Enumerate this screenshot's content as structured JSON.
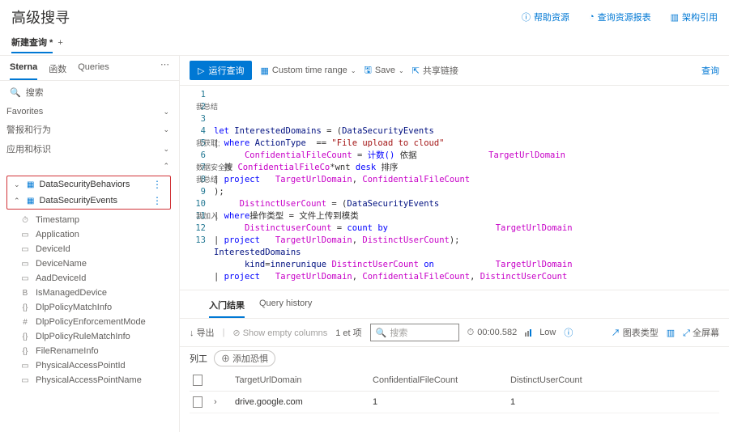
{
  "header": {
    "title": "高级搜寻",
    "help": "帮助资源",
    "resources": "查询资源报表",
    "schema": "架构引用"
  },
  "newQueryTab": "新建查询",
  "leftTabs": {
    "sterna": "Sterna",
    "functions": "函数",
    "queries": "Queries"
  },
  "leftSearch": "搜索",
  "sections": {
    "favorites": "Favorites",
    "alerts": "警报和行为",
    "apps": "应用和标识"
  },
  "treeItems": [
    "DataSecurityBehaviors",
    "DataSecurityEvents"
  ],
  "schemaCols": [
    {
      "icon": "⏱",
      "label": "Timestamp"
    },
    {
      "icon": "▭",
      "label": "Application"
    },
    {
      "icon": "▭",
      "label": "DeviceId"
    },
    {
      "icon": "▭",
      "label": "DeviceName"
    },
    {
      "icon": "▭",
      "label": "AadDeviceId"
    },
    {
      "icon": "B",
      "label": "IsManagedDevice"
    },
    {
      "icon": "{}",
      "label": "DlpPolicyMatchInfo"
    },
    {
      "icon": "#",
      "label": "DlpPolicyEnforcementMode"
    },
    {
      "icon": "{}",
      "label": "DlpPolicyRuleMatchInfo"
    },
    {
      "icon": "{}",
      "label": "FileRenameInfo"
    },
    {
      "icon": "▭",
      "label": "PhysicalAccessPointId"
    },
    {
      "icon": "▭",
      "label": "PhysicalAccessPointName"
    }
  ],
  "toolbar": {
    "run": "运行查询",
    "timeRange": "Custom time range",
    "save": "Save",
    "share": "共享链接",
    "rightLink": "查询"
  },
  "editorLines": [
    "let InterestedDomains = (DataSecurityEvents",
    "| where ActionType  == \"File upload to cloud\"",
    "      ConfidentialFileCount = 计数() 依据              TargetUrlDomain",
    "  按 ConfidentialFileCo*wnt desk 排序",
    "| project   TargetUrlDomain, ConfidentialFileCount",
    ");",
    "     DistinctUserCount = (DataSecurityEvents",
    "| where操作类型 = 文件上传到模类",
    "      DistinctuserCount = count by                     TargetUrlDomain",
    "| project   TargetUrlDomain, DistinctUserCount);",
    "InterestedDomains",
    "      kind=innerunique DistinctUserCount on            TargetUrlDomain",
    "| project   TargetUrlDomain, ConfidentialFileCount, DistinctUserCount"
  ],
  "folds": {
    "l2": "我总结",
    "l5": "我获取;",
    "l7": "数据安全性",
    "l8": "我总结",
    "l11": "我加入"
  },
  "resultTabs": {
    "inline": "入门结果",
    "history": "Query history"
  },
  "resultsToolbar": {
    "export": "导出",
    "empty": "Show empty columns",
    "count": "1 et 项",
    "searchPh": "搜索",
    "time": "00:00.582",
    "low": "Low",
    "chartType": "图表类型",
    "fullscreen": "全屏幕"
  },
  "chips": {
    "label": "列工",
    "add": "添加恐惧"
  },
  "table": {
    "cols": [
      "TargetUrlDomain",
      "ConfidentialFileCount",
      "DistinctUserCount"
    ],
    "rows": [
      {
        "d": "drive.google.com",
        "c": "1",
        "u": "1"
      }
    ]
  }
}
